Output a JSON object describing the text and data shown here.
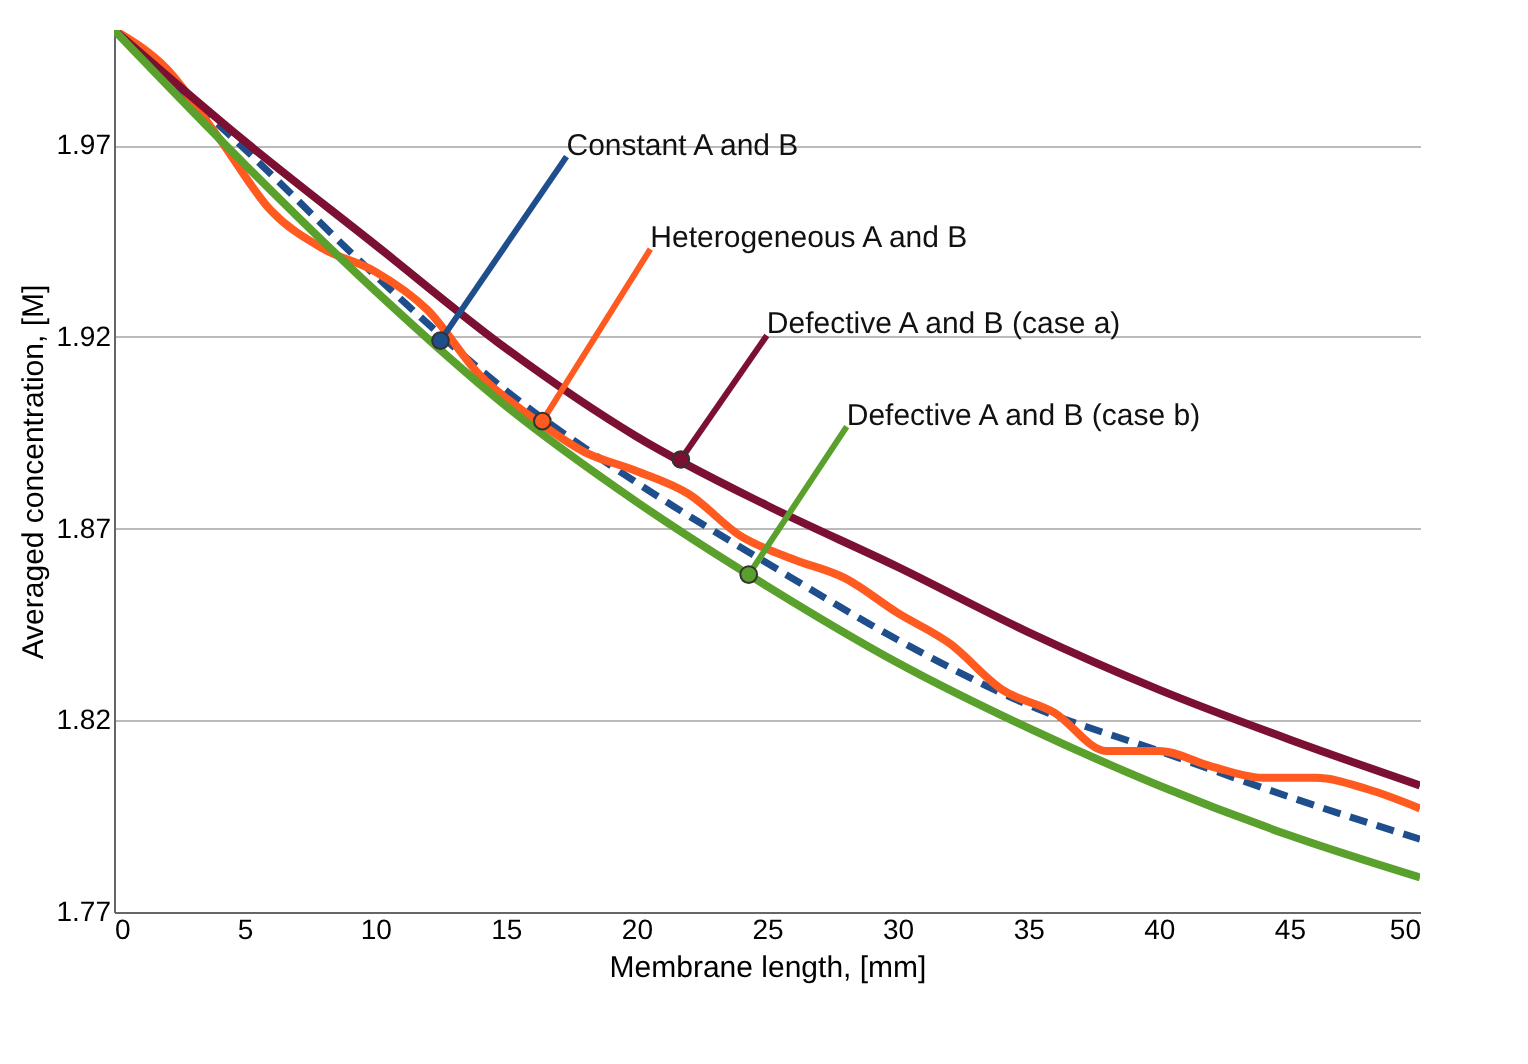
{
  "chart_data": {
    "type": "line",
    "xlabel": "Membrane length, [mm]",
    "ylabel": "Averaged concentration, [M]",
    "xlim": [
      0,
      50
    ],
    "xticks": [
      0,
      5,
      10,
      15,
      20,
      25,
      30,
      35,
      40,
      45,
      50
    ],
    "ylim": [
      1.77,
      2.0
    ],
    "yticks": [
      1.77,
      1.82,
      1.87,
      1.92,
      1.97
    ],
    "grid": "y",
    "series": [
      {
        "color": "#1f4e8c",
        "line_style": "dashed",
        "x": [
          0,
          5,
          10,
          15,
          20,
          25,
          30,
          35,
          40,
          45,
          50
        ],
        "values": [
          2.0,
          1.969,
          1.936,
          1.906,
          1.882,
          1.861,
          1.841,
          1.824,
          1.812,
          1.8,
          1.789
        ]
      },
      {
        "color": "#ff5a1f",
        "line_style": "solid",
        "x": [
          0,
          2,
          4,
          6,
          8,
          10,
          12,
          14,
          16,
          18,
          20,
          22,
          24,
          26,
          28,
          30,
          32,
          34,
          36,
          38,
          40,
          42,
          44,
          46,
          48,
          50
        ],
        "values": [
          2.0,
          1.99,
          1.972,
          1.953,
          1.943,
          1.937,
          1.927,
          1.91,
          1.899,
          1.89,
          1.885,
          1.879,
          1.868,
          1.862,
          1.857,
          1.848,
          1.84,
          1.828,
          1.822,
          1.812,
          1.812,
          1.808,
          1.805,
          1.805,
          1.802,
          1.797
        ]
      },
      {
        "color": "#7b1032",
        "line_style": "solid",
        "x": [
          0,
          5,
          10,
          15,
          20,
          25,
          30,
          35,
          40,
          45,
          50
        ],
        "values": [
          2.0,
          1.971,
          1.944,
          1.917,
          1.894,
          1.876,
          1.86,
          1.843,
          1.828,
          1.815,
          1.803
        ]
      },
      {
        "color": "#5aa02c",
        "line_style": "solid",
        "x": [
          0,
          5,
          10,
          15,
          20,
          25,
          30,
          35,
          40,
          45,
          50
        ],
        "values": [
          2.0,
          1.965,
          1.932,
          1.902,
          1.877,
          1.855,
          1.835,
          1.818,
          1.803,
          1.79,
          1.779
        ]
      }
    ],
    "annotations": [
      {
        "text": "Constant A and B",
        "x": 12.5,
        "y": 1.919
      },
      {
        "text": "Heterogeneous A and B",
        "x": 16.4,
        "y": 1.898
      },
      {
        "text": "Defective A and B (case a)",
        "x": 21.7,
        "y": 1.888
      },
      {
        "text": "Defective A and B (case b)",
        "x": 24.3,
        "y": 1.858
      }
    ]
  }
}
